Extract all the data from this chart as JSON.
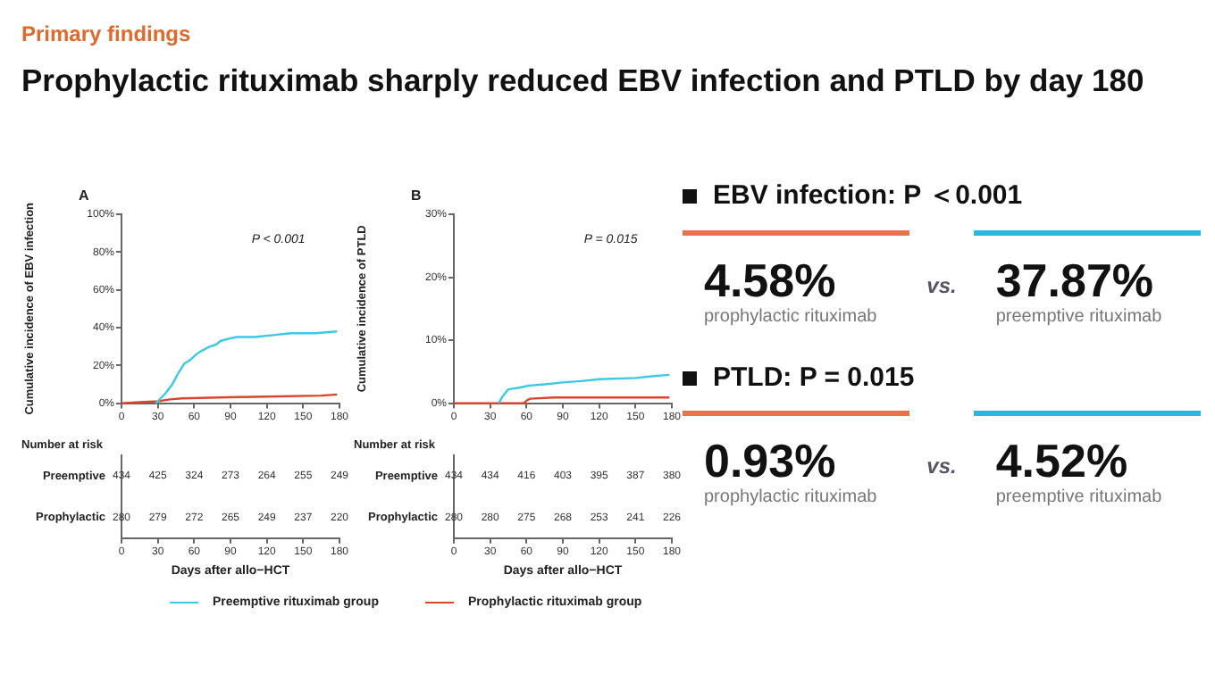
{
  "chart_data": [
    {
      "type": "line",
      "subtitle": "Primary findings",
      "title": "Prophylactic rituximab sharply reduced EBV infection and PTLD by day 180",
      "ylabel": "Cumulative incidence of EBV infection",
      "xlim": [
        0,
        180
      ],
      "xticks": [
        0,
        30,
        60,
        90,
        120,
        150,
        180
      ],
      "ylim": [
        0,
        100
      ],
      "yticks": [
        {
          "value": 0,
          "label": "0%"
        },
        {
          "value": 20,
          "label": "20%"
        },
        {
          "value": 40,
          "label": "40%"
        },
        {
          "value": 60,
          "label": "60%"
        },
        {
          "value": 80,
          "label": "80%"
        },
        {
          "value": 100,
          "label": "100%"
        }
      ],
      "legend": "bottom",
      "marker": "none",
      "series": [
        {
          "name": "Preemptive rituximab group",
          "color": "#3cc8e6",
          "x": [
            28,
            30,
            36,
            42,
            47,
            52,
            57,
            62,
            67,
            73,
            78,
            82,
            88,
            95,
            110,
            125,
            140,
            160,
            178
          ],
          "values": [
            0,
            1,
            5,
            10,
            16,
            21,
            23,
            26,
            28,
            30,
            31,
            33,
            34,
            35,
            35,
            36,
            37,
            37,
            38
          ]
        },
        {
          "name": "Prophylactic rituximab group",
          "color": "#d9452b",
          "x": [
            0,
            15,
            30,
            40,
            50,
            80,
            120,
            165,
            178
          ],
          "values": [
            0,
            0.5,
            1,
            2,
            2.5,
            3,
            3.5,
            4,
            4.6
          ]
        }
      ],
      "annotations": [
        "A",
        "P < 0.001"
      ]
    },
    {
      "type": "heatmap",
      "title": "Number at risk",
      "xlabel": "Days after allo−HCT",
      "categories": [
        "0",
        "30",
        "60",
        "90",
        "120",
        "150",
        "180"
      ],
      "y_categories": [
        "Preemptive",
        "Prophylactic"
      ],
      "data_labels": true,
      "cells": [
        [
          434,
          425,
          324,
          273,
          264,
          255,
          249
        ],
        [
          280,
          279,
          272,
          265,
          249,
          237,
          220
        ]
      ]
    },
    {
      "type": "line",
      "ylabel": "Cumulative incidence of PTLD",
      "xlim": [
        0,
        180
      ],
      "xticks": [
        0,
        30,
        60,
        90,
        120,
        150,
        180
      ],
      "ylim": [
        0,
        30
      ],
      "yticks": [
        {
          "value": 0,
          "label": "0%"
        },
        {
          "value": 10,
          "label": "10%"
        },
        {
          "value": 20,
          "label": "20%"
        },
        {
          "value": 30,
          "label": "30%"
        }
      ],
      "marker": "none",
      "series": [
        {
          "color": "#3cc8e6",
          "x": [
            37,
            40,
            45,
            55,
            62,
            75,
            90,
            105,
            120,
            150,
            165,
            178
          ],
          "values": [
            0,
            1,
            2.2,
            2.5,
            2.8,
            3,
            3.3,
            3.5,
            3.8,
            4,
            4.3,
            4.5
          ]
        },
        {
          "color": "#d9452b",
          "x": [
            0,
            58,
            60,
            63,
            82,
            178
          ],
          "values": [
            0,
            0,
            0.4,
            0.7,
            0.9,
            0.9
          ]
        }
      ],
      "annotations": [
        "B",
        "P = 0.015"
      ]
    },
    {
      "type": "heatmap",
      "title": "Number at risk",
      "xlabel": "Days after allo−HCT",
      "categories": [
        "0",
        "30",
        "60",
        "90",
        "120",
        "150",
        "180"
      ],
      "y_categories": [
        "Preemptive",
        "Prophylactic"
      ],
      "data_labels": true,
      "cells": [
        [
          434,
          434,
          416,
          403,
          395,
          387,
          380
        ],
        [
          280,
          280,
          275,
          268,
          253,
          241,
          226
        ]
      ]
    },
    {
      "type": "other",
      "title": "EBV infection: P ＜0.001",
      "categories": [
        "prophylactic rituximab",
        "preemptive rituximab"
      ],
      "value_labels": [
        "4.58%",
        "37.87%"
      ],
      "colors": [
        "#e8734a",
        "#2bb5e0"
      ],
      "annotations": [
        "vs."
      ]
    },
    {
      "type": "other",
      "title": "PTLD: P = 0.015",
      "categories": [
        "prophylactic rituximab",
        "preemptive rituximab"
      ],
      "value_labels": [
        "0.93%",
        "4.52%"
      ],
      "colors": [
        "#e8734a",
        "#2bb5e0"
      ],
      "annotations": [
        "vs."
      ]
    }
  ]
}
